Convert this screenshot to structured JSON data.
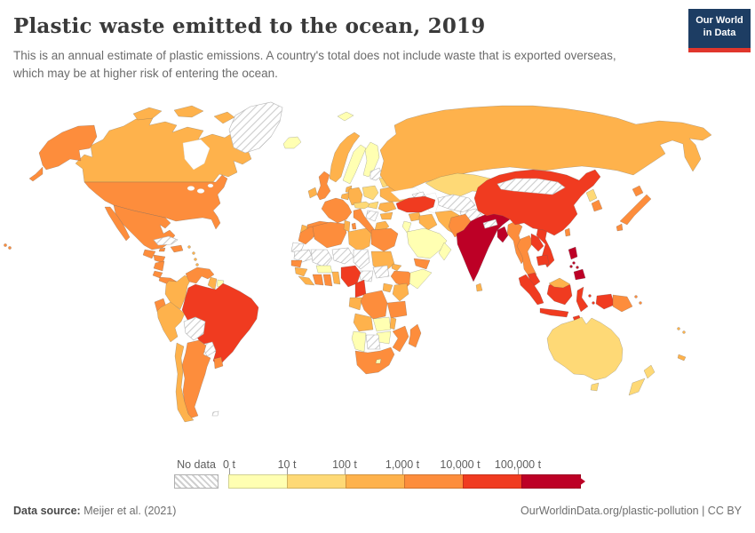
{
  "header": {
    "title": "Plastic waste emitted to the ocean, 2019",
    "subtitle": "This is an annual estimate of plastic emissions. A country's total does not include waste that is exported overseas, which may be at higher risk of entering the ocean.",
    "logo": {
      "line1": "Our World",
      "line2": "in Data",
      "bg_color": "#1d3d63",
      "accent_color": "#e0362c"
    }
  },
  "legend": {
    "no_data_label": "No data",
    "tick_labels": [
      "0 t",
      "10 t",
      "100 t",
      "1,000 t",
      "10,000 t",
      "100,000 t"
    ]
  },
  "footer": {
    "source_label": "Data source:",
    "source_text": " Meijer et al. (2021)",
    "right_text": "OurWorldinData.org/plastic-pollution | CC BY"
  },
  "chart_data": {
    "type": "choropleth",
    "title": "Plastic waste emitted to the ocean, 2019",
    "year": 2019,
    "unit": "tonnes of plastic waste emitted to the ocean",
    "bin_edges_t": [
      0,
      10,
      100,
      1000,
      10000,
      100000
    ],
    "bin_labels": [
      "0-10 t",
      "10-100 t",
      "100-1,000 t",
      "1,000-10,000 t",
      "10,000-100,000 t",
      "100,000+ t"
    ],
    "palette": [
      "#FFFFB2",
      "#FED976",
      "#FEB24C",
      "#FD8D3C",
      "#F03B20",
      "#BD0026"
    ],
    "no_data_pattern": "hatched",
    "countries": {
      "greenland": {
        "label": "Greenland",
        "bin": "nd"
      },
      "canada": {
        "label": "Canada",
        "bin": 3
      },
      "usa": {
        "label": "United States",
        "bin": 4
      },
      "mexico": {
        "label": "Mexico",
        "bin": 4
      },
      "guatemala": {
        "label": "Guatemala",
        "bin": 4
      },
      "honduras": {
        "label": "Honduras",
        "bin": 4
      },
      "nicaragua": {
        "label": "Nicaragua",
        "bin": 4
      },
      "costa-rica": {
        "label": "Costa Rica",
        "bin": 4
      },
      "panama": {
        "label": "Panama",
        "bin": 4
      },
      "cuba": {
        "label": "Cuba",
        "bin": "nd"
      },
      "jamaica": {
        "label": "Jamaica",
        "bin": 4
      },
      "hispaniola": {
        "label": "Haiti / Dominican Republic",
        "bin": 4
      },
      "antilles": {
        "label": "Lesser Antilles",
        "bin": 3
      },
      "colombia": {
        "label": "Colombia",
        "bin": 3
      },
      "venezuela": {
        "label": "Venezuela",
        "bin": 4
      },
      "guyana": {
        "label": "Guyana",
        "bin": 3
      },
      "suriname": {
        "label": "Suriname",
        "bin": 1
      },
      "ecuador": {
        "label": "Ecuador",
        "bin": 4
      },
      "peru": {
        "label": "Peru",
        "bin": 3
      },
      "brazil": {
        "label": "Brazil",
        "bin": 5
      },
      "bolivia": {
        "label": "Bolivia",
        "bin": "nd"
      },
      "paraguay": {
        "label": "Paraguay",
        "bin": "nd"
      },
      "chile": {
        "label": "Chile",
        "bin": 3
      },
      "argentina": {
        "label": "Argentina",
        "bin": 4
      },
      "uruguay": {
        "label": "Uruguay",
        "bin": 4
      },
      "falkland": {
        "label": "Falkland Islands",
        "bin": "nd"
      },
      "iceland": {
        "label": "Iceland",
        "bin": 1
      },
      "svalbard": {
        "label": "Svalbard",
        "bin": 1
      },
      "norway": {
        "label": "Norway",
        "bin": 3
      },
      "sweden": {
        "label": "Sweden",
        "bin": 1
      },
      "finland": {
        "label": "Finland",
        "bin": 1
      },
      "denmark": {
        "label": "Denmark",
        "bin": 3
      },
      "uk": {
        "label": "United Kingdom",
        "bin": 4
      },
      "ireland": {
        "label": "Ireland",
        "bin": 3
      },
      "benelux": {
        "label": "Belgium / Netherlands",
        "bin": 3
      },
      "germany": {
        "label": "Germany",
        "bin": 3
      },
      "france": {
        "label": "France",
        "bin": 4
      },
      "spain": {
        "label": "Spain",
        "bin": 4
      },
      "portugal": {
        "label": "Portugal",
        "bin": 3
      },
      "italy": {
        "label": "Italy",
        "bin": 4
      },
      "alpine": {
        "label": "Switzerland / Austria / Czechia",
        "bin": 2
      },
      "poland": {
        "label": "Poland",
        "bin": 2
      },
      "baltics": {
        "label": "Baltic states",
        "bin": "nd"
      },
      "belarus": {
        "label": "Belarus",
        "bin": 2
      },
      "ukraine": {
        "label": "Ukraine",
        "bin": 3
      },
      "hungary": {
        "label": "Hungary",
        "bin": 2
      },
      "romania": {
        "label": "Romania",
        "bin": 3
      },
      "balkans": {
        "label": "Western Balkans",
        "bin": "nd"
      },
      "bulgaria": {
        "label": "Bulgaria",
        "bin": 3
      },
      "greece": {
        "label": "Greece",
        "bin": 3
      },
      "russia": {
        "label": "Russia",
        "bin": 3
      },
      "turkey": {
        "label": "Turkey",
        "bin": 5
      },
      "syria": {
        "label": "Syria",
        "bin": 3
      },
      "iraq": {
        "label": "Iraq",
        "bin": 3
      },
      "israel-jordan": {
        "label": "Israel / Jordan",
        "bin": 1
      },
      "saudi-arabia": {
        "label": "Saudi Arabia",
        "bin": 1
      },
      "yemen": {
        "label": "Yemen",
        "bin": 4
      },
      "oman": {
        "label": "Oman",
        "bin": 1
      },
      "iran": {
        "label": "Iran",
        "bin": 3
      },
      "caucasus": {
        "label": "Caucasus",
        "bin": "nd"
      },
      "kazakhstan": {
        "label": "Kazakhstan",
        "bin": 2
      },
      "uzbekistan-turkmenistan": {
        "label": "Uzbekistan / Turkmenistan",
        "bin": "nd"
      },
      "kyrgyzstan-tajikistan": {
        "label": "Kyrgyzstan / Tajikistan",
        "bin": "nd"
      },
      "afghanistan": {
        "label": "Afghanistan",
        "bin": "nd"
      },
      "morocco": {
        "label": "Morocco",
        "bin": 4
      },
      "western-sahara": {
        "label": "Western Sahara",
        "bin": "nd"
      },
      "algeria": {
        "label": "Algeria",
        "bin": 4
      },
      "tunisia": {
        "label": "Tunisia",
        "bin": 3
      },
      "libya": {
        "label": "Libya",
        "bin": 3
      },
      "egypt": {
        "label": "Egypt",
        "bin": 4
      },
      "mauritania": {
        "label": "Mauritania",
        "bin": "nd"
      },
      "mali": {
        "label": "Mali",
        "bin": "nd"
      },
      "niger": {
        "label": "Niger",
        "bin": "nd"
      },
      "chad": {
        "label": "Chad",
        "bin": "nd"
      },
      "sudan": {
        "label": "Sudan",
        "bin": 3
      },
      "eritrea": {
        "label": "Eritrea",
        "bin": 3
      },
      "ethiopia": {
        "label": "Ethiopia",
        "bin": 4
      },
      "somalia": {
        "label": "Somalia",
        "bin": 1
      },
      "south-sudan": {
        "label": "South Sudan",
        "bin": "nd"
      },
      "central-african-republic": {
        "label": "Central African Republic",
        "bin": "nd"
      },
      "senegal": {
        "label": "Senegal",
        "bin": 4
      },
      "guinea": {
        "label": "Guinea",
        "bin": 3
      },
      "sierra-leone-liberia": {
        "label": "Sierra Leone / Liberia",
        "bin": 3
      },
      "cote-divoire": {
        "label": "Cote d'Ivoire",
        "bin": 4
      },
      "ghana": {
        "label": "Ghana",
        "bin": 4
      },
      "togo-benin": {
        "label": "Togo / Benin",
        "bin": 3
      },
      "burkina-faso": {
        "label": "Burkina Faso",
        "bin": 1
      },
      "nigeria": {
        "label": "Nigeria",
        "bin": 5
      },
      "cameroon": {
        "label": "Cameroon",
        "bin": 5
      },
      "gabon-congo": {
        "label": "Gabon / Congo",
        "bin": 3
      },
      "dr-congo": {
        "label": "Democratic Republic of Congo",
        "bin": 4
      },
      "uganda": {
        "label": "Uganda",
        "bin": 3
      },
      "kenya": {
        "label": "Kenya",
        "bin": 3
      },
      "tanzania": {
        "label": "Tanzania",
        "bin": 4
      },
      "angola": {
        "label": "Angola",
        "bin": 3
      },
      "zambia": {
        "label": "Zambia",
        "bin": 1
      },
      "malawi": {
        "label": "Malawi",
        "bin": 3
      },
      "mozambique": {
        "label": "Mozambique",
        "bin": 4
      },
      "zimbabwe": {
        "label": "Zimbabwe",
        "bin": 1
      },
      "botswana": {
        "label": "Botswana",
        "bin": "nd"
      },
      "namibia": {
        "label": "Namibia",
        "bin": 1
      },
      "south-africa": {
        "label": "South Africa",
        "bin": 4
      },
      "lesotho": {
        "label": "Lesotho",
        "bin": 1
      },
      "madagascar": {
        "label": "Madagascar",
        "bin": 4
      },
      "pakistan": {
        "label": "Pakistan",
        "bin": 4
      },
      "india": {
        "label": "India",
        "bin": 6
      },
      "nepal": {
        "label": "Nepal",
        "bin": "nd"
      },
      "sri-lanka": {
        "label": "Sri Lanka",
        "bin": 3
      },
      "bangladesh": {
        "label": "Bangladesh",
        "bin": 6
      },
      "myanmar": {
        "label": "Myanmar",
        "bin": 4
      },
      "thailand": {
        "label": "Thailand",
        "bin": 4
      },
      "laos": {
        "label": "Laos",
        "bin": 5
      },
      "cambodia": {
        "label": "Cambodia",
        "bin": 5
      },
      "vietnam": {
        "label": "Vietnam",
        "bin": 5
      },
      "malaysia": {
        "label": "Malaysia",
        "bin": 5
      },
      "malaysia-borneo": {
        "label": "Malaysia (Borneo)",
        "bin": 3
      },
      "china": {
        "label": "China",
        "bin": 5
      },
      "mongolia": {
        "label": "Mongolia",
        "bin": "nd"
      },
      "taiwan": {
        "label": "Taiwan",
        "bin": 4
      },
      "north-korea": {
        "label": "North Korea",
        "bin": 2
      },
      "south-korea": {
        "label": "South Korea",
        "bin": 4
      },
      "japan": {
        "label": "Japan",
        "bin": 4
      },
      "philippines": {
        "label": "Philippines",
        "bin": 6
      },
      "indonesia": {
        "label": "Indonesia",
        "bin": 5
      },
      "papua-new-guinea": {
        "label": "Papua New Guinea",
        "bin": 4
      },
      "australia": {
        "label": "Australia",
        "bin": 2
      },
      "new-zealand": {
        "label": "New Zealand",
        "bin": 2
      },
      "fiji": {
        "label": "Fiji",
        "bin": 3
      },
      "new-caledonia": {
        "label": "New Caledonia",
        "bin": 3
      }
    }
  }
}
